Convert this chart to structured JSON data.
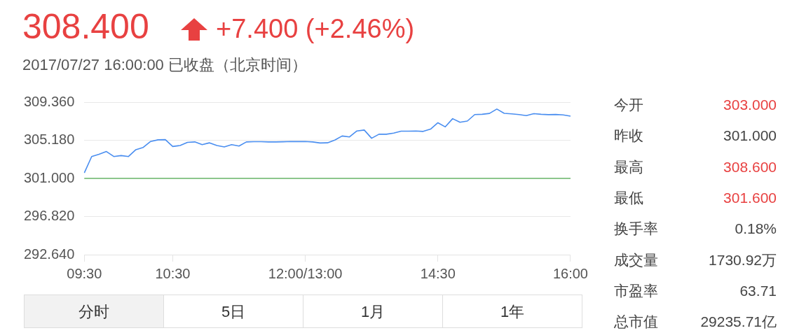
{
  "chart_data": {
    "type": "line",
    "title": "308.400",
    "subtitle": "2017/07/27 16:00:00 已收盘（北京时间）",
    "annotations": [
      "+7.400 (+2.46%)",
      "今开",
      "303.000",
      "昨收",
      "301.000",
      "最高",
      "308.600",
      "最低",
      "301.600",
      "换手率",
      "0.18%",
      "成交量",
      "1730.92万",
      "市盈率",
      "63.71",
      "总市值",
      "29235.71亿",
      "分时",
      "5日",
      "1月",
      "1年"
    ],
    "categories": [
      "09:30",
      null,
      null,
      null,
      null,
      null,
      null,
      null,
      null,
      null,
      null,
      null,
      "10:30",
      null,
      null,
      null,
      null,
      null,
      null,
      null,
      null,
      null,
      null,
      null,
      null,
      null,
      null,
      null,
      null,
      null,
      "12:00/13:00",
      null,
      null,
      null,
      null,
      null,
      null,
      null,
      null,
      null,
      null,
      null,
      null,
      null,
      null,
      null,
      null,
      null,
      "14:30",
      null,
      null,
      null,
      null,
      null,
      null,
      null,
      null,
      null,
      null,
      null,
      null,
      null,
      null,
      null,
      null,
      null,
      "16:00"
    ],
    "series": [
      {
        "color": "#4a8ef0",
        "values": [
          301.6,
          303.4,
          303.65,
          303.95,
          303.4,
          303.5,
          303.4,
          304.15,
          304.4,
          305.05,
          305.23,
          305.25,
          304.5,
          304.6,
          304.95,
          305.0,
          304.7,
          304.9,
          304.6,
          304.45,
          304.7,
          304.55,
          305.0,
          305.03,
          305.03,
          305.0,
          305.0,
          305.02,
          305.04,
          305.04,
          305.04,
          305.0,
          304.88,
          304.9,
          305.2,
          305.65,
          305.55,
          306.2,
          306.3,
          305.4,
          305.84,
          305.84,
          305.97,
          306.18,
          306.18,
          306.2,
          306.15,
          306.4,
          307.1,
          306.65,
          307.55,
          307.16,
          307.29,
          308.0,
          308.03,
          308.12,
          308.6,
          308.13,
          308.08,
          308.0,
          307.88,
          308.1,
          308.03,
          307.99,
          308.01,
          307.96,
          307.82
        ]
      }
    ],
    "ylim": [
      292.64,
      309.36
    ],
    "yticks": [
      {
        "value": 292.64,
        "label": "292.640"
      },
      {
        "value": 296.82,
        "label": "296.820"
      },
      {
        "value": 301,
        "label": "301.000"
      },
      {
        "value": 305.18,
        "label": "305.180"
      },
      {
        "value": 309.36,
        "label": "309.360"
      }
    ],
    "ref_lines": [
      {
        "axis": "y",
        "value": 301,
        "color": "#8cc68c"
      }
    ],
    "grid": "y",
    "legend": false,
    "marker": "none"
  }
}
